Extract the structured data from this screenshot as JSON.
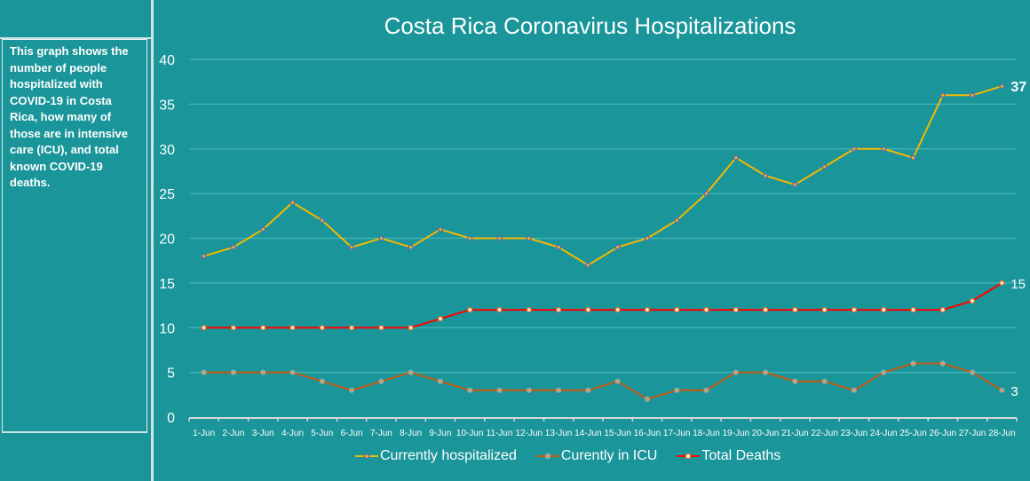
{
  "description": "This graph shows the number of people hospitalized with COVID-19 in Costa Rica, how many of those are in intensive care (ICU), and total known COVID-19 deaths.",
  "chart_data": {
    "type": "line",
    "title": "Costa Rica Coronavirus Hospitalizations",
    "xlabel": "",
    "ylabel": "",
    "ylim": [
      0,
      40
    ],
    "yticks": [
      0,
      5,
      10,
      15,
      20,
      25,
      30,
      35,
      40
    ],
    "grid": true,
    "legend": "bottom",
    "categories": [
      "1-Jun",
      "2-Jun",
      "3-Jun",
      "4-Jun",
      "5-Jun",
      "6-Jun",
      "7-Jun",
      "8-Jun",
      "9-Jun",
      "10-Jun",
      "11-Jun",
      "12-Jun",
      "13-Jun",
      "14-Jun",
      "15-Jun",
      "16-Jun",
      "17-Jun",
      "18-Jun",
      "19-Jun",
      "20-Jun",
      "21-Jun",
      "22-Jun",
      "23-Jun",
      "24-Jun",
      "25-Jun",
      "26-Jun",
      "27-Jun",
      "28-Jun"
    ],
    "series": [
      {
        "name": "Currently hospitalized",
        "color": "#f5b800",
        "marker_color": "#5b6bbf",
        "values": [
          18,
          19,
          21,
          24,
          22,
          19,
          20,
          19,
          21,
          20,
          20,
          20,
          19,
          17,
          19,
          20,
          22,
          25,
          29,
          27,
          26,
          28,
          30,
          30,
          29,
          36,
          36,
          37
        ],
        "end_label": "37"
      },
      {
        "name": "Curently in ICU",
        "color": "#c55a11",
        "marker_color": "#a5a5a5",
        "values": [
          5,
          5,
          5,
          5,
          4,
          3,
          4,
          5,
          4,
          3,
          3,
          3,
          3,
          3,
          4,
          2,
          3,
          3,
          5,
          5,
          4,
          4,
          3,
          5,
          6,
          6,
          5,
          3
        ],
        "end_label": "3"
      },
      {
        "name": "Total Deaths",
        "color": "#ff0000",
        "marker_color": "#ed7d31",
        "values": [
          10,
          10,
          10,
          10,
          10,
          10,
          10,
          10,
          11,
          12,
          12,
          12,
          12,
          12,
          12,
          12,
          12,
          12,
          12,
          12,
          12,
          12,
          12,
          12,
          12,
          12,
          13,
          15
        ],
        "end_label": "15"
      }
    ]
  }
}
